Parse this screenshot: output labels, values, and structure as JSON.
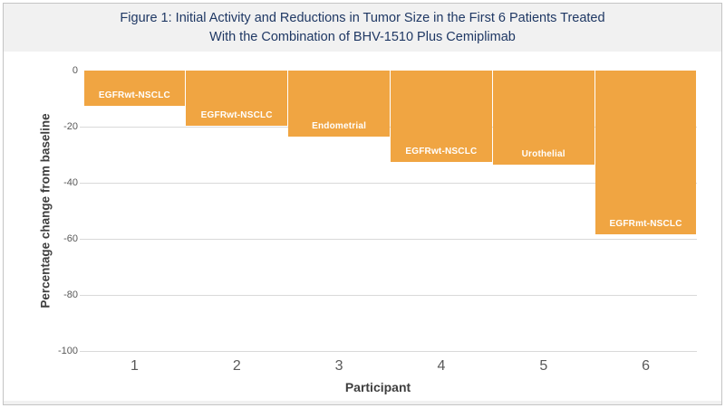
{
  "figure": {
    "title_line1": "Figure 1: Initial Activity and Reductions in Tumor Size in the First 6 Patients Treated",
    "title_line2": "With the Combination of BHV-1510 Plus Cemiplimab",
    "title_color": "#1f3864",
    "background_color": "#f1f1f1",
    "panel_color": "#ffffff",
    "border_color": "#c4c4c4"
  },
  "chart_data": {
    "type": "bar",
    "orientation": "vertical",
    "categories": [
      "1",
      "2",
      "3",
      "4",
      "5",
      "6"
    ],
    "values": [
      -12.5,
      -19.5,
      -23.5,
      -32.5,
      -33.5,
      -58.5
    ],
    "bar_labels": [
      "EGFRwt-NSCLC",
      "EGFRwt-NSCLC",
      "Endometrial",
      "EGFRwt-NSCLC",
      "Urothelial",
      "EGFRmt-NSCLC"
    ],
    "title": "Figure 1: Initial Activity and Reductions in Tumor Size in the First 6 Patients Treated With the Combination of BHV-1510 Plus Cemiplimab",
    "xlabel": "Participant",
    "ylabel": "Percentage change from baseline",
    "ylim": [
      -100,
      0
    ],
    "yticks": [
      0,
      -20,
      -40,
      -60,
      -80,
      -100
    ],
    "grid": true,
    "legend": false,
    "bar_color": "#f0a542",
    "bar_label_color": "#ffffff",
    "gridline_color": "#d9d9d9",
    "tick_label_color": "#595959",
    "axis_title_color": "#3f3f3f"
  }
}
